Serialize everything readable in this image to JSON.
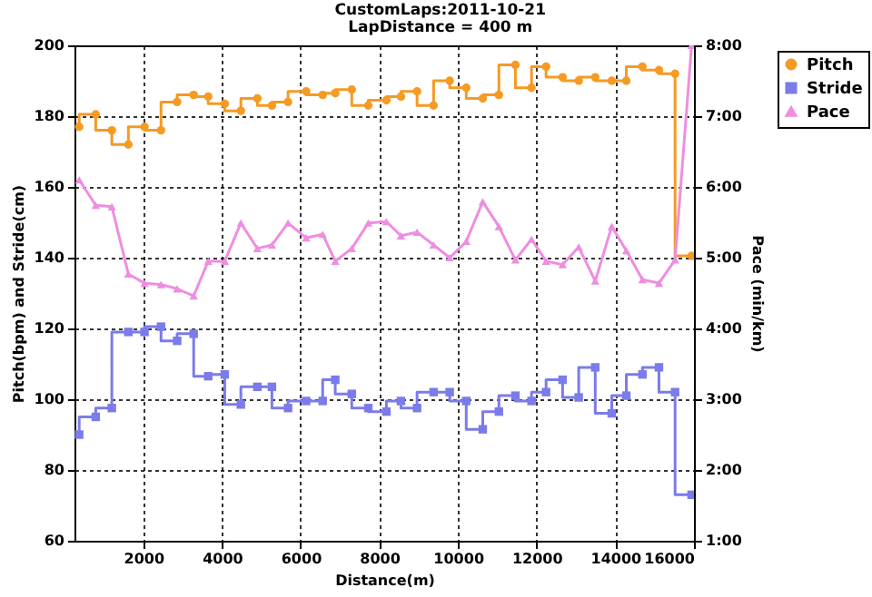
{
  "chart_data": {
    "type": "step",
    "title": "CustomLaps:2011-10-21",
    "subtitle": "LapDistance = 400 m",
    "xlabel": "Distance(m)",
    "ylabel": "Pitch(bpm) and Stride(cm)",
    "y2label": "Pace (min/km)",
    "x": [
      370,
      790,
      1200,
      1620,
      2030,
      2450,
      2860,
      3280,
      3650,
      4070,
      4480,
      4900,
      5270,
      5680,
      6140,
      6560,
      6880,
      7300,
      7720,
      8180,
      8550,
      8960,
      9380,
      9790,
      10210,
      10630,
      11040,
      11460,
      11870,
      12240,
      12660,
      13070,
      13490,
      13910,
      14280,
      14690,
      15110,
      15520,
      15940
    ],
    "series": [
      {
        "name": "Pitch",
        "color": "#f59a23",
        "marker": "circle",
        "values": [
          177,
          180.5,
          176,
          172,
          177,
          176,
          184,
          186,
          185.5,
          183.5,
          181.5,
          185,
          183,
          184,
          187,
          186,
          186.5,
          187.5,
          183,
          184.5,
          185.5,
          187,
          183,
          190,
          188,
          185,
          186,
          194.5,
          188,
          194,
          191,
          190,
          191,
          190,
          190,
          194,
          193,
          192,
          140.5
        ]
      },
      {
        "name": "Stride",
        "color": "#7b7bea",
        "marker": "square",
        "values": [
          90,
          95,
          97.5,
          119,
          119,
          120.5,
          116.5,
          118.5,
          106.5,
          107,
          98.5,
          103.5,
          103.5,
          97.5,
          99.5,
          99.5,
          105.5,
          101.5,
          97.5,
          96.5,
          99.5,
          97.5,
          102,
          102,
          99.5,
          91.5,
          96.5,
          101,
          99.5,
          102,
          105.5,
          100.5,
          109,
          96,
          101,
          107,
          109,
          102,
          73
        ]
      },
      {
        "name": "Pace",
        "type": "line",
        "axis": "y2",
        "color": "#ee8ee0",
        "marker": "triangle",
        "values": [
          6.1,
          5.74,
          5.72,
          4.77,
          4.64,
          4.62,
          4.56,
          4.46,
          4.95,
          4.95,
          5.49,
          5.13,
          5.18,
          5.49,
          5.28,
          5.33,
          4.95,
          5.13,
          5.49,
          5.51,
          5.31,
          5.36,
          5.18,
          5.0,
          5.23,
          5.79,
          5.44,
          4.97,
          5.26,
          4.95,
          4.9,
          5.15,
          4.67,
          5.44,
          5.1,
          4.69,
          4.64,
          4.97,
          8.0
        ]
      }
    ],
    "xlim": [
      250,
      16000
    ],
    "xticks": [
      2000,
      4000,
      6000,
      8000,
      10000,
      12000,
      14000,
      16000
    ],
    "ylim": [
      60,
      200
    ],
    "yticks": [
      60,
      80,
      100,
      120,
      140,
      160,
      180,
      200
    ],
    "y2lim": [
      1,
      8
    ],
    "y2ticks": [
      {
        "value": 1,
        "label": "1:00"
      },
      {
        "value": 2,
        "label": "2:00"
      },
      {
        "value": 3,
        "label": "3:00"
      },
      {
        "value": 4,
        "label": "4:00"
      },
      {
        "value": 5,
        "label": "5:00"
      },
      {
        "value": 6,
        "label": "6:00"
      },
      {
        "value": 7,
        "label": "7:00"
      },
      {
        "value": 8,
        "label": "8:00"
      }
    ],
    "grid": true,
    "legend": "top right"
  }
}
